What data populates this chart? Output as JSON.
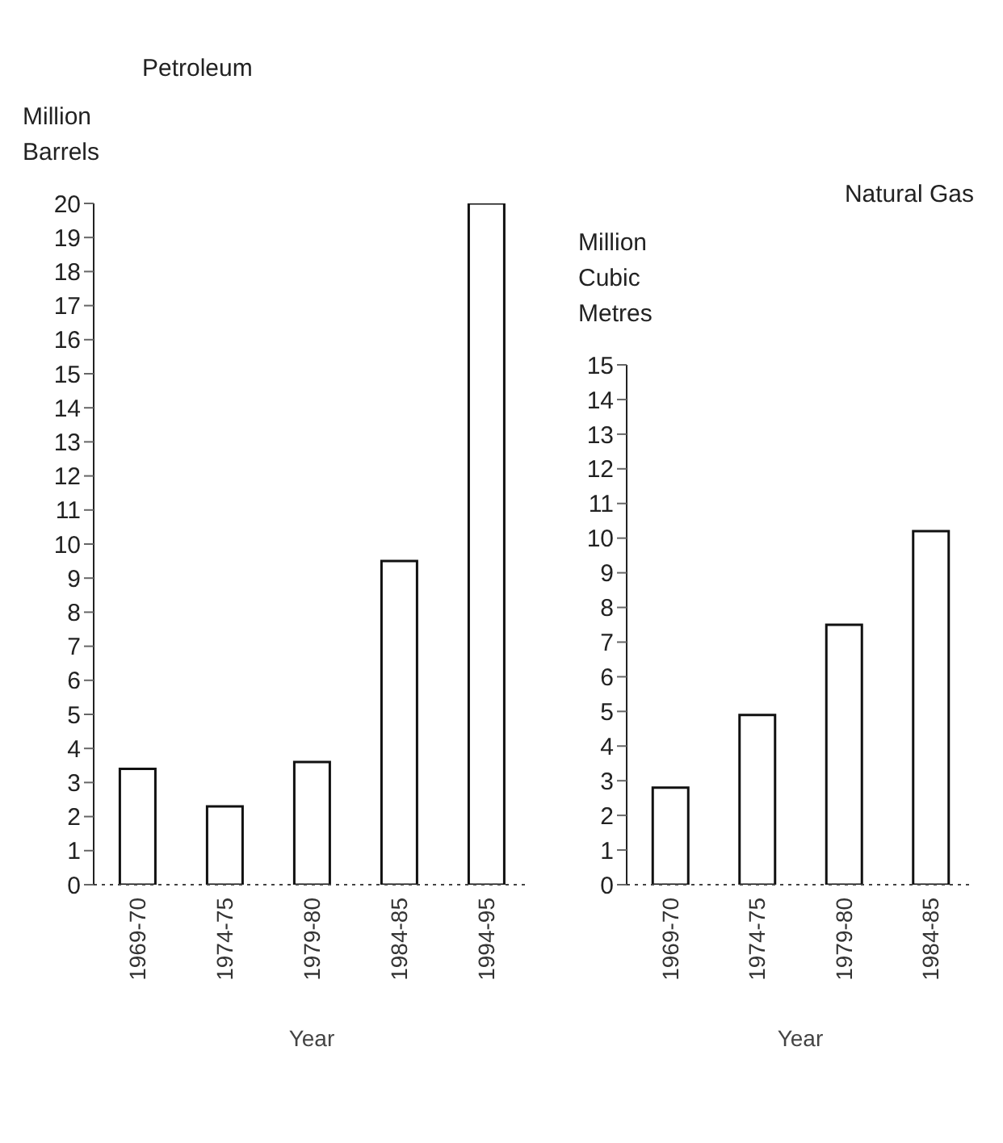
{
  "chart_data": [
    {
      "type": "bar",
      "title": "Petroleum",
      "ylabel": "Million Barrels",
      "xlabel": "Year",
      "categories": [
        "1969-70",
        "1974-75",
        "1979-80",
        "1984-85",
        "1994-95"
      ],
      "values": [
        3.4,
        2.3,
        3.6,
        9.5,
        20
      ],
      "color": "#ffffff",
      "ylim": [
        0,
        20
      ],
      "yticks": [
        0,
        1,
        2,
        3,
        4,
        5,
        6,
        7,
        8,
        9,
        10,
        11,
        12,
        13,
        14,
        15,
        16,
        17,
        18,
        19,
        20
      ],
      "grid": false,
      "legend": false
    },
    {
      "type": "bar",
      "title": "Natural Gas",
      "ylabel": "Million Cubic Metres",
      "xlabel": "Year",
      "categories": [
        "1969-70",
        "1974-75",
        "1979-80",
        "1984-85"
      ],
      "values": [
        2.8,
        4.9,
        7.5,
        10.2
      ],
      "color": "#ffffff",
      "ylim": [
        0,
        15
      ],
      "yticks": [
        0,
        1,
        2,
        3,
        4,
        5,
        6,
        7,
        8,
        9,
        10,
        11,
        12,
        13,
        14,
        15
      ],
      "grid": false,
      "legend": false
    }
  ]
}
